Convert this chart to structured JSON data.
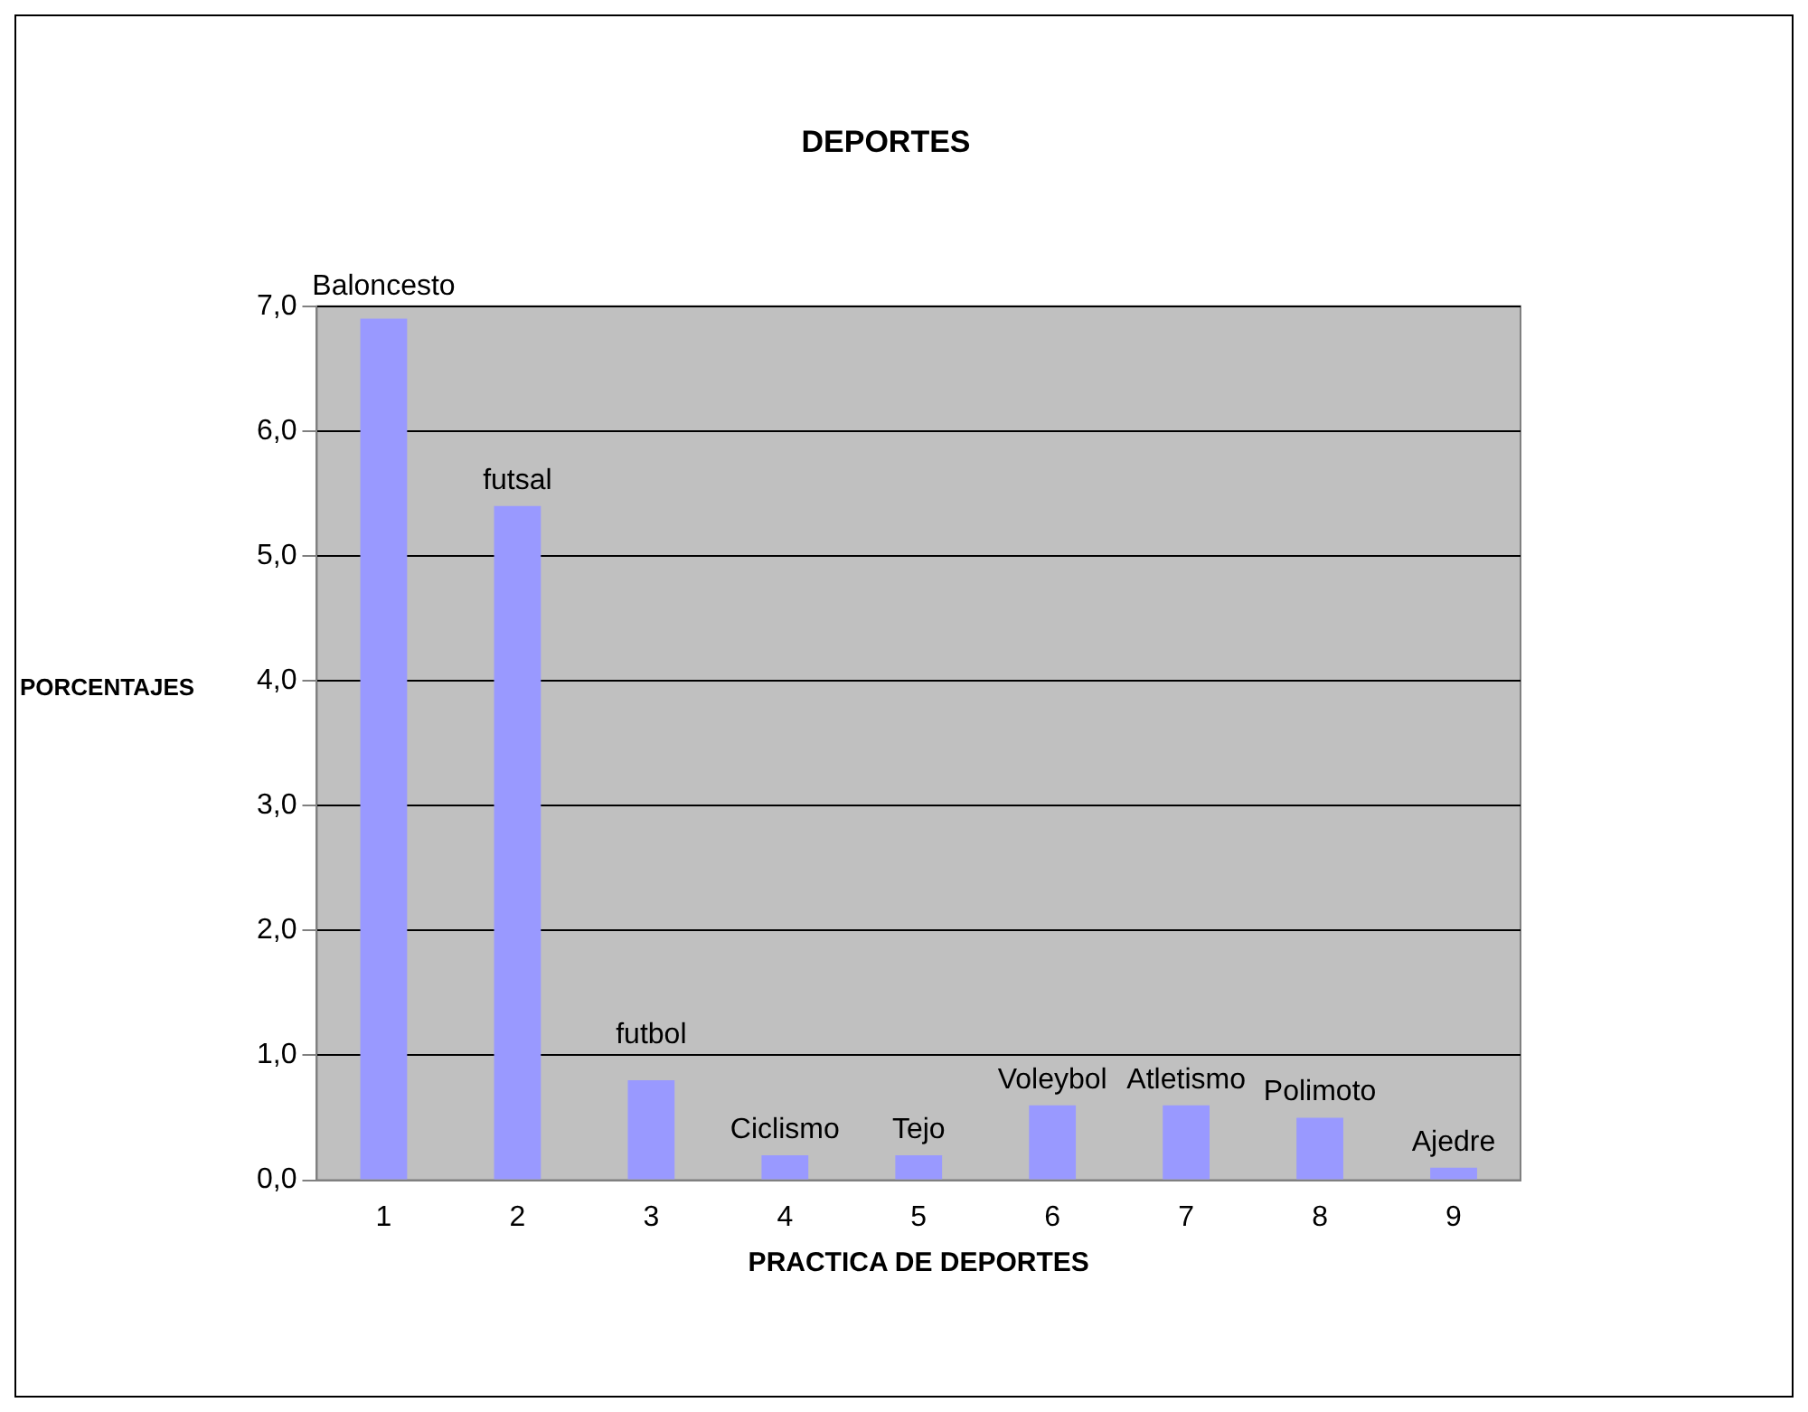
{
  "chart_data": {
    "type": "bar",
    "title": "DEPORTES",
    "xlabel": "PRACTICA DE DEPORTES",
    "ylabel": "PORCENTAJES",
    "categories": [
      "1",
      "2",
      "3",
      "4",
      "5",
      "6",
      "7",
      "8",
      "9"
    ],
    "values": [
      6.9,
      5.4,
      0.8,
      0.2,
      0.2,
      0.6,
      0.6,
      0.5,
      0.1
    ],
    "color": "#9999ff",
    "ylim": [
      0,
      7
    ],
    "yticks": [
      {
        "value": 0,
        "label": "0,0"
      },
      {
        "value": 1,
        "label": "1,0"
      },
      {
        "value": 2,
        "label": "2,0"
      },
      {
        "value": 3,
        "label": "3,0"
      },
      {
        "value": 4,
        "label": "4,0"
      },
      {
        "value": 5,
        "label": "5,0"
      },
      {
        "value": 6,
        "label": "6,0"
      },
      {
        "value": 7,
        "label": "7,0"
      }
    ],
    "grid": "y",
    "legend": false,
    "annotations": [
      "Baloncesto",
      "futsal",
      "futbol",
      "Ciclismo",
      "Tejo",
      "Voleybol",
      "Atletismo",
      "Polimoto",
      "Ajedre"
    ]
  }
}
